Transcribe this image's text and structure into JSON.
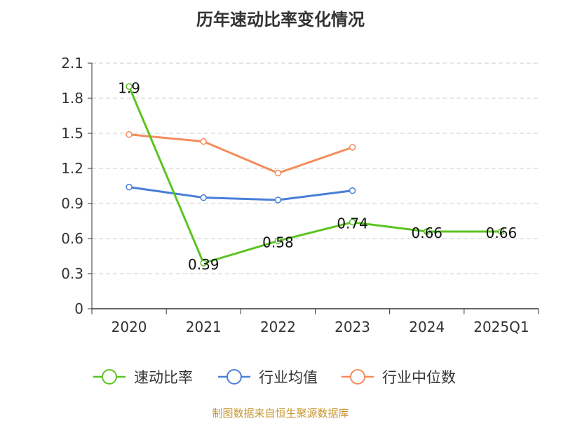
{
  "chart_data": {
    "type": "line",
    "title": "历年速动比率变化情况",
    "xlabel": "",
    "ylabel": "",
    "categories": [
      "2020",
      "2021",
      "2022",
      "2023",
      "2024",
      "2025Q1"
    ],
    "y_ticks": [
      "0",
      "0.3",
      "0.6",
      "0.9",
      "1.2",
      "1.5",
      "1.8",
      "2.1"
    ],
    "ylim": [
      0,
      2.1
    ],
    "grid": true,
    "legend_position": "bottom",
    "series": [
      {
        "name": "速动比率",
        "color": "#5cc421",
        "values": [
          1.9,
          0.39,
          0.58,
          0.74,
          0.66,
          0.66
        ],
        "labels": [
          "1.9",
          "0.39",
          "0.58",
          "0.74",
          "0.66",
          "0.66"
        ]
      },
      {
        "name": "行业均值",
        "color": "#4a7fd9",
        "values": [
          1.04,
          0.95,
          0.93,
          1.01,
          null,
          null
        ]
      },
      {
        "name": "行业中位数",
        "color": "#f48c5c",
        "values": [
          1.49,
          1.43,
          1.16,
          1.38,
          null,
          null
        ]
      }
    ]
  },
  "footer": {
    "source": "制图数据来自恒生聚源数据库"
  }
}
